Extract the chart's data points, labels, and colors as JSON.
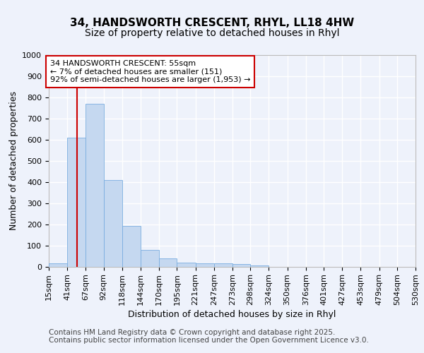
{
  "title_line1": "34, HANDSWORTH CRESCENT, RHYL, LL18 4HW",
  "title_line2": "Size of property relative to detached houses in Rhyl",
  "xlabel": "Distribution of detached houses by size in Rhyl",
  "ylabel": "Number of detached properties",
  "bin_edges": [
    15,
    41,
    67,
    92,
    118,
    144,
    170,
    195,
    221,
    247,
    273,
    298,
    324,
    350,
    376,
    401,
    427,
    453,
    479,
    504,
    530
  ],
  "bar_heights": [
    15,
    608,
    770,
    410,
    193,
    78,
    40,
    18,
    15,
    15,
    12,
    5,
    0,
    0,
    0,
    0,
    0,
    0,
    0,
    0
  ],
  "bar_color": "#c5d8f0",
  "bar_edge_color": "#7aade0",
  "red_line_x": 55,
  "ylim": [
    0,
    1000
  ],
  "yticks": [
    0,
    100,
    200,
    300,
    400,
    500,
    600,
    700,
    800,
    900,
    1000
  ],
  "annotation_text": "34 HANDSWORTH CRESCENT: 55sqm\n← 7% of detached houses are smaller (151)\n92% of semi-detached houses are larger (1,953) →",
  "annotation_box_facecolor": "#ffffff",
  "annotation_box_edgecolor": "#cc0000",
  "red_line_color": "#cc0000",
  "footnote_line1": "Contains HM Land Registry data © Crown copyright and database right 2025.",
  "footnote_line2": "Contains public sector information licensed under the Open Government Licence v3.0.",
  "background_color": "#eef2fb",
  "plot_bg_color": "#eef2fb",
  "grid_color": "#ffffff",
  "title1_fontsize": 11,
  "title2_fontsize": 10,
  "axis_label_fontsize": 9,
  "tick_fontsize": 8,
  "annotation_fontsize": 8,
  "footnote_fontsize": 7.5
}
